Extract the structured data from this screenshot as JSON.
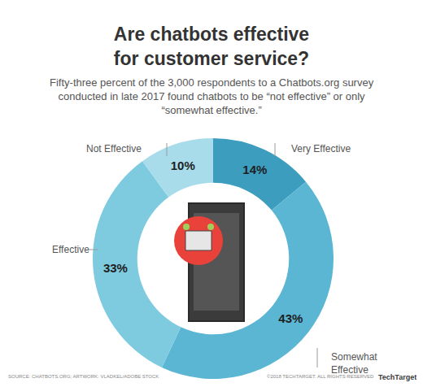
{
  "chart_data": {
    "type": "pie",
    "title": "Are chatbots effective for customer service?",
    "subtitle": "Fifty-three percent of the 3,000 respondents to a Chatbots.org survey conducted in late 2017 found chatbots to be “not effective” or only “somewhat effective.”",
    "categories": [
      "Very Effective",
      "Somewhat Effective",
      "Effective",
      "Not Effective"
    ],
    "values": [
      14,
      43,
      33,
      10
    ],
    "value_labels": [
      "14%",
      "43%",
      "33%",
      "10%"
    ],
    "colors": [
      "#3d9dbf",
      "#5bb6d4",
      "#7ecbe0",
      "#a8dcea"
    ],
    "data_labels": true,
    "annotations": [
      "SOURCE: CHATBOTS.ORG; ARTWORK: VLADKEL/ADOBE STOCK",
      "©2018 TECHTARGET. ALL RIGHTS RESERVED",
      "TechTarget"
    ]
  }
}
